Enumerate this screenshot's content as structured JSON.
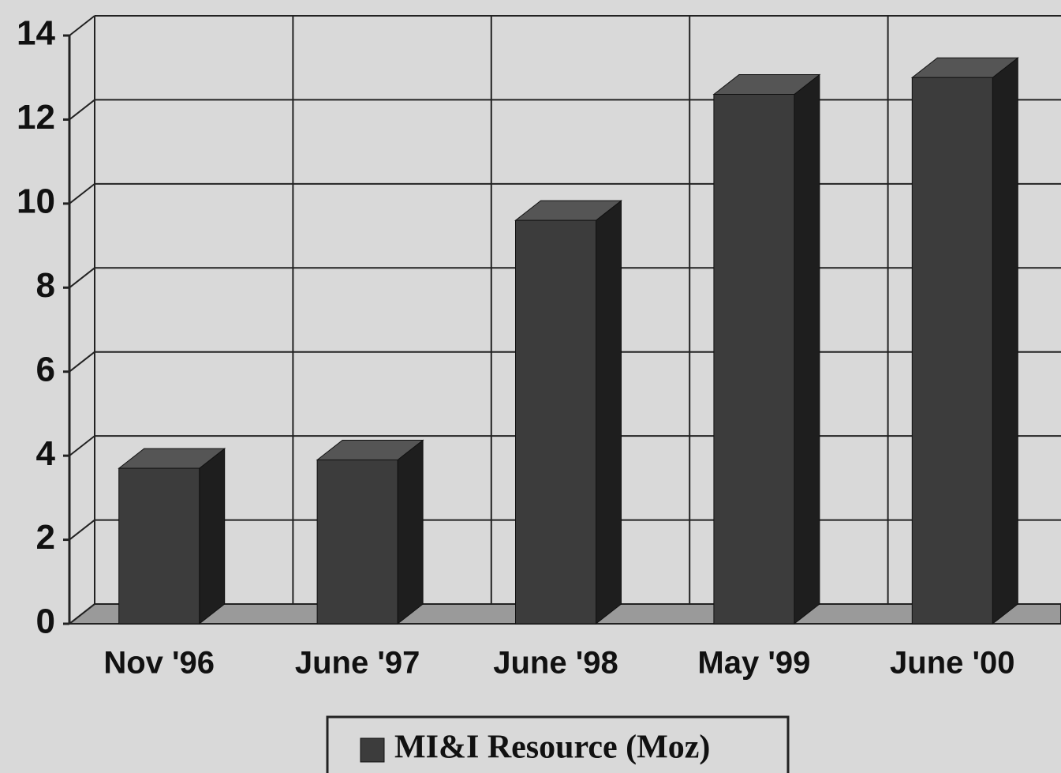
{
  "chart_data": {
    "type": "bar",
    "categories": [
      "Nov '96",
      "June '97",
      "June '98",
      "May '99",
      "June '00"
    ],
    "series": [
      {
        "name": "MI&I Resource (Moz)",
        "color": "#3c3c3c",
        "values": [
          3.7,
          3.9,
          9.6,
          12.6,
          13.0
        ]
      }
    ],
    "ylim": [
      0,
      14
    ],
    "yticks": [
      0,
      2,
      4,
      6,
      8,
      10,
      12,
      14
    ],
    "grid": true,
    "legend": "bottom"
  }
}
